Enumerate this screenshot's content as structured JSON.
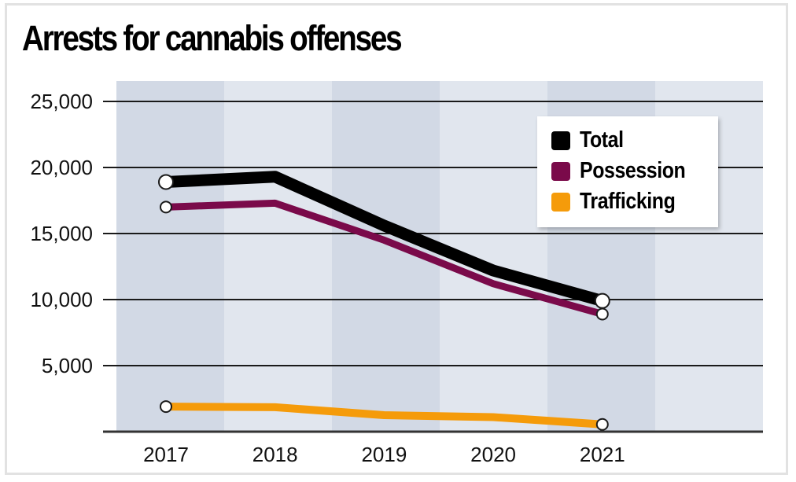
{
  "chart_data": {
    "type": "line",
    "title": "Arrests for cannabis offenses",
    "xlabel": "",
    "ylabel": "",
    "categories": [
      "2017",
      "2018",
      "2019",
      "2020",
      "2021"
    ],
    "ylim": [
      0,
      25000
    ],
    "yticks": [
      5000,
      10000,
      15000,
      20000,
      25000
    ],
    "ytick_labels": [
      "5,000",
      "10,000",
      "15,000",
      "20,000",
      "25,000"
    ],
    "grid": true,
    "legend_position": "top-right",
    "series": [
      {
        "name": "Total",
        "color": "#000000",
        "values": [
          18900,
          19300,
          15600,
          12200,
          9900
        ]
      },
      {
        "name": "Possession",
        "color": "#7a0a4a",
        "values": [
          17000,
          17300,
          14500,
          11200,
          8900
        ]
      },
      {
        "name": "Trafficking",
        "color": "#f59b0a",
        "values": [
          1900,
          1850,
          1250,
          1100,
          550
        ]
      }
    ],
    "background_bands": [
      "#d2d9e5",
      "#e1e6ee"
    ]
  }
}
